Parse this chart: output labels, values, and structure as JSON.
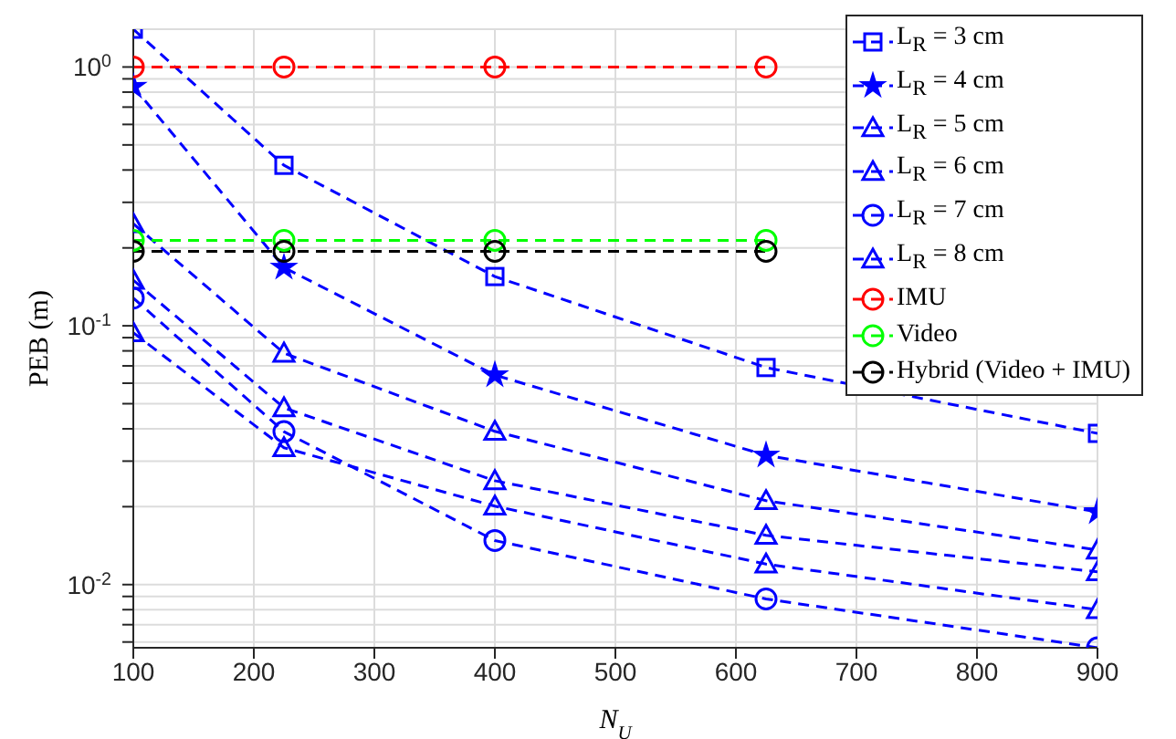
{
  "chart_data": {
    "type": "line",
    "xlabel": "N$_{U}$",
    "ylabel": "PEB (m)",
    "x": [
      100,
      225,
      400,
      625,
      900
    ],
    "series": [
      {
        "name": "L$_{R}$ = 3 cm",
        "color": "#0000ff",
        "marker": "square",
        "values": [
          1.4,
          0.417,
          0.155,
          0.069,
          0.0384
        ]
      },
      {
        "name": "L$_{R}$ = 4 cm",
        "color": "#0000ff",
        "marker": "star",
        "values": [
          0.84,
          0.168,
          0.0645,
          0.0316,
          0.0191
        ]
      },
      {
        "name": "L$_{R}$ = 5 cm",
        "color": "#0000ff",
        "marker": "triangle",
        "values": [
          0.248,
          0.0784,
          0.0391,
          0.0211,
          0.0136
        ]
      },
      {
        "name": "L$_{R}$ = 6 cm",
        "color": "#0000ff",
        "marker": "triangle",
        "values": [
          0.15,
          0.0482,
          0.0252,
          0.0155,
          0.0112
        ]
      },
      {
        "name": "L$_{R}$ = 7 cm",
        "color": "#0000ff",
        "marker": "circle",
        "values": [
          0.128,
          0.039,
          0.0148,
          0.0088,
          0.0057
        ]
      },
      {
        "name": "L$_{R}$ = 8 cm",
        "color": "#0000ff",
        "marker": "triangle",
        "values": [
          0.094,
          0.0338,
          0.0201,
          0.012,
          0.008
        ]
      },
      {
        "name": "IMU",
        "color": "#ff0000",
        "marker": "circle",
        "values": [
          1.0,
          1.0,
          1.0,
          1.0,
          null
        ]
      },
      {
        "name": "Video",
        "color": "#00ff00",
        "marker": "circle",
        "values": [
          0.214,
          0.214,
          0.214,
          0.214,
          null
        ]
      },
      {
        "name": "Hybrid (Video + IMU)",
        "color": "#000000",
        "marker": "circle",
        "values": [
          0.194,
          0.194,
          0.194,
          0.194,
          null
        ]
      }
    ],
    "xlim": [
      100,
      900
    ],
    "xticks": [
      100,
      200,
      300,
      400,
      500,
      600,
      700,
      800,
      900
    ],
    "ylim": [
      0.0057,
      1.4
    ],
    "log": true,
    "yticks": [
      {
        "value": 0.006,
        "label": null
      },
      {
        "value": 0.007,
        "label": null
      },
      {
        "value": 0.008,
        "label": null
      },
      {
        "value": 0.009,
        "label": null
      },
      {
        "value": 0.01,
        "label": "10$^{-2}$"
      },
      {
        "value": 0.02,
        "label": null
      },
      {
        "value": 0.03,
        "label": null
      },
      {
        "value": 0.04,
        "label": null
      },
      {
        "value": 0.05,
        "label": null
      },
      {
        "value": 0.06,
        "label": null
      },
      {
        "value": 0.07,
        "label": null
      },
      {
        "value": 0.08,
        "label": null
      },
      {
        "value": 0.09,
        "label": null
      },
      {
        "value": 0.1,
        "label": "10$^{-1}$"
      },
      {
        "value": 0.2,
        "label": null
      },
      {
        "value": 0.3,
        "label": null
      },
      {
        "value": 0.4,
        "label": null
      },
      {
        "value": 0.5,
        "label": null
      },
      {
        "value": 0.6,
        "label": null
      },
      {
        "value": 0.7,
        "label": null
      },
      {
        "value": 0.8,
        "label": null
      },
      {
        "value": 0.9,
        "label": null
      },
      {
        "value": 1,
        "label": "10$^{0}$"
      }
    ],
    "grid": true,
    "legend": "top right",
    "line_style": "dashed"
  }
}
